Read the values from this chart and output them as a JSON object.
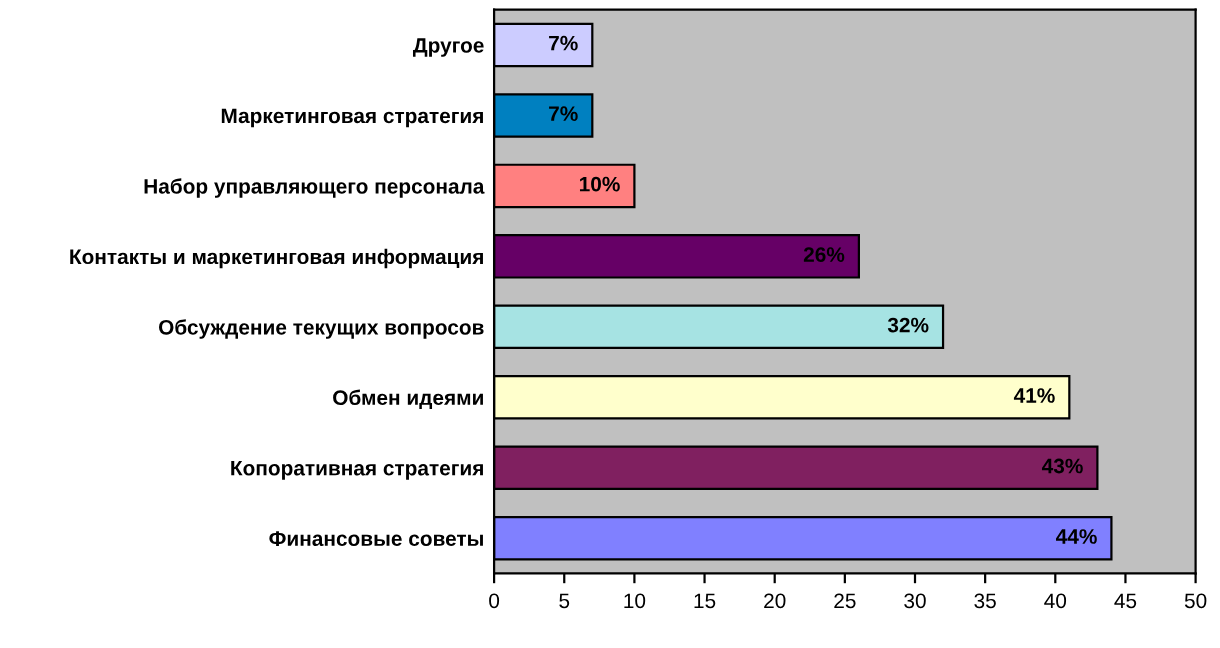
{
  "chart_data": {
    "type": "bar",
    "orientation": "horizontal",
    "categories": [
      "Другое",
      "Маркетинговая стратегия",
      "Набор управляющего персонала",
      "Контакты и маркетинговая информация",
      "Обсуждение текущих вопросов",
      "Обмен идеями",
      "Копоративная стратегия",
      "Финансовые советы"
    ],
    "values": [
      7,
      7,
      10,
      26,
      32,
      41,
      43,
      44
    ],
    "colors": [
      "#ccccff",
      "#0080c0",
      "#ff8080",
      "#660066",
      "#a6e3e3",
      "#ffffcc",
      "#802060",
      "#8080ff"
    ],
    "value_labels": [
      "7%",
      "7%",
      "10%",
      "26%",
      "32%",
      "41%",
      "43%",
      "44%"
    ],
    "xlim": [
      0,
      50
    ],
    "xticks": [
      0,
      5,
      10,
      15,
      20,
      25,
      30,
      35,
      40,
      45,
      50
    ],
    "grid": false,
    "legend": false
  }
}
